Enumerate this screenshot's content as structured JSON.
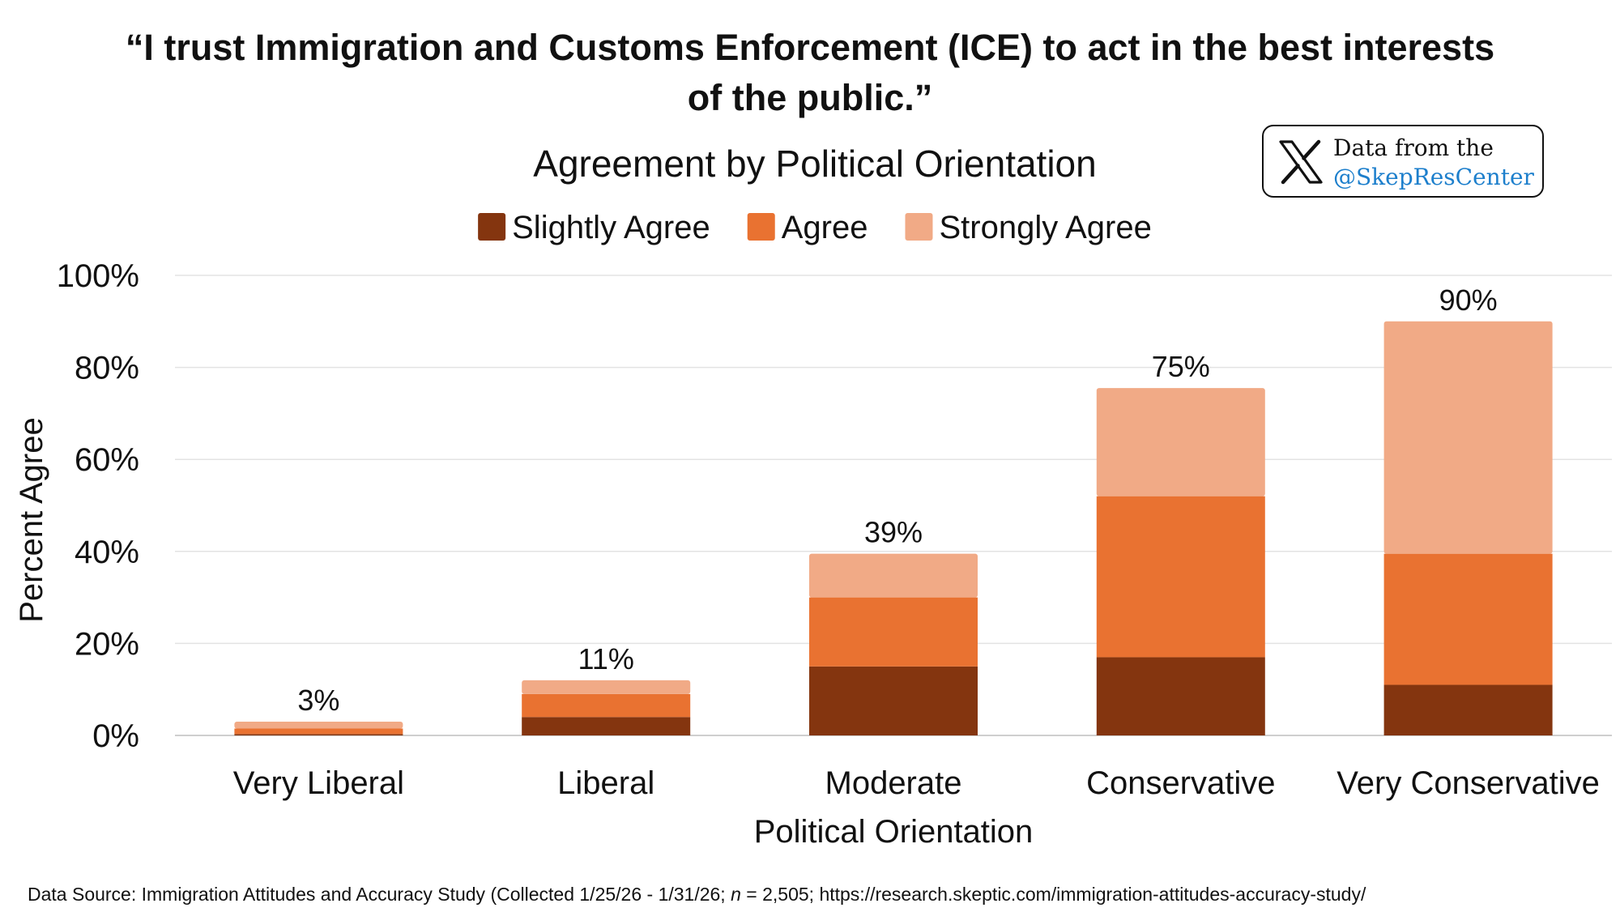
{
  "title_line1": "“I trust Immigration and Customs Enforcement (ICE) to act in the best interests",
  "title_line2": "of the public.”",
  "badge": {
    "icon": "x-logo-icon",
    "line1": "Data from the",
    "line2": "@SkepResCenter",
    "handle_color": "#1d7fcc"
  },
  "source": {
    "prefix": "Data Source: Immigration Attitudes and Accuracy Study (Collected 1/25/26 - 1/31/26; ",
    "n_label": "n",
    "suffix": " = 2,505; https://research.skeptic.com/immigration-attitudes-accuracy-study/"
  },
  "chart_data": {
    "type": "bar",
    "stacked": true,
    "title": "Agreement by Political Orientation",
    "xlabel": "Political Orientation",
    "ylabel": "Percent Agree",
    "ylim": [
      0,
      100
    ],
    "yticks": [
      0,
      20,
      40,
      60,
      80,
      100
    ],
    "ytick_labels": [
      "0%",
      "20%",
      "40%",
      "60%",
      "80%",
      "100%"
    ],
    "grid": true,
    "legend_position": "top-center",
    "categories": [
      "Very Liberal",
      "Liberal",
      "Moderate",
      "Conservative",
      "Very Conservative"
    ],
    "series": [
      {
        "name": "Slightly Agree",
        "color": "#84350f",
        "values": [
          0.3,
          4,
          15,
          17,
          11
        ]
      },
      {
        "name": "Agree",
        "color": "#e97231",
        "values": [
          1.2,
          5,
          15,
          35,
          28.5
        ]
      },
      {
        "name": "Strongly Agree",
        "color": "#f1aa86",
        "values": [
          1.5,
          3,
          9.5,
          23.5,
          50.5
        ]
      }
    ],
    "totals": [
      3,
      11,
      39,
      75,
      90
    ],
    "total_labels": [
      "3%",
      "11%",
      "39%",
      "75%",
      "90%"
    ]
  }
}
